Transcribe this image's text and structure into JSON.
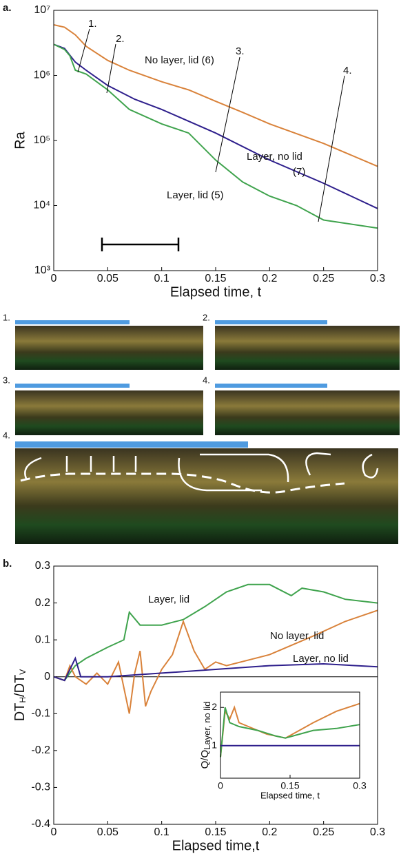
{
  "chart_data": [
    {
      "type": "line",
      "panel_label": "a.",
      "x_label": "Elapsed time, t",
      "y_label": "Ra",
      "log_y": true,
      "xlim": [
        0,
        0.3
      ],
      "ylim": [
        1000,
        10000000
      ],
      "xticks": [
        0,
        0.05,
        0.1,
        0.15,
        0.2,
        0.25,
        0.3
      ],
      "yticks": [
        {
          "value": 1000,
          "label": "10³"
        },
        {
          "value": 10000,
          "label": "10⁴"
        },
        {
          "value": 100000,
          "label": "10⁵"
        },
        {
          "value": 1000000,
          "label": "10⁶"
        },
        {
          "value": 10000000,
          "label": "10⁷"
        }
      ],
      "series": [
        {
          "name": "No layer, lid (6)",
          "color": "#d9823a",
          "x": [
            0,
            0.01,
            0.02,
            0.03,
            0.05,
            0.07,
            0.1,
            0.125,
            0.15,
            0.175,
            0.2,
            0.25,
            0.3
          ],
          "values": [
            6000000,
            5500000,
            4200000,
            2800000,
            1700000,
            1200000,
            800000,
            600000,
            400000,
            270000,
            180000,
            90000,
            40000
          ]
        },
        {
          "name": "Layer, no lid",
          "color": "#2e1f8c",
          "x": [
            0,
            0.01,
            0.02,
            0.03,
            0.05,
            0.075,
            0.1,
            0.15,
            0.2,
            0.25,
            0.3
          ],
          "values": [
            3000000,
            2600000,
            1600000,
            1200000,
            700000,
            430000,
            300000,
            130000,
            50000,
            22000,
            9000
          ]
        },
        {
          "name": "Layer, lid (5)",
          "color": "#3fa34d",
          "x": [
            0,
            0.01,
            0.015,
            0.02,
            0.03,
            0.05,
            0.07,
            0.1,
            0.125,
            0.15,
            0.175,
            0.2,
            0.225,
            0.25,
            0.3
          ],
          "values": [
            3000000,
            2500000,
            2000000,
            1200000,
            1050000,
            600000,
            300000,
            180000,
            130000,
            50000,
            23000,
            14000,
            10000,
            6000,
            4500
          ]
        }
      ],
      "annotations": [
        "(7)",
        "1.",
        "2.",
        "3.",
        "4."
      ]
    },
    {
      "type": "line",
      "panel_label": "b.",
      "x_label": "Elapsed time,t",
      "y_label_parts": [
        "DT",
        "H",
        "/DT",
        "V"
      ],
      "xlim": [
        0,
        0.3
      ],
      "ylim": [
        -0.4,
        0.3
      ],
      "xticks": [
        0,
        0.05,
        0.1,
        0.15,
        0.2,
        0.25,
        0.3
      ],
      "yticks": [
        -0.4,
        -0.3,
        -0.2,
        -0.1,
        0,
        0.1,
        0.2,
        0.3
      ],
      "series": [
        {
          "name": "Layer, lid",
          "color": "#3fa34d",
          "x": [
            0,
            0.01,
            0.02,
            0.03,
            0.05,
            0.065,
            0.07,
            0.08,
            0.1,
            0.12,
            0.14,
            0.16,
            0.18,
            0.2,
            0.22,
            0.23,
            0.25,
            0.27,
            0.3
          ],
          "values": [
            0,
            -0.01,
            0.03,
            0.05,
            0.08,
            0.1,
            0.175,
            0.14,
            0.14,
            0.155,
            0.19,
            0.23,
            0.25,
            0.25,
            0.22,
            0.24,
            0.23,
            0.21,
            0.2
          ]
        },
        {
          "name": "No layer, lid",
          "color": "#d9823a",
          "x": [
            0,
            0.01,
            0.015,
            0.02,
            0.03,
            0.04,
            0.05,
            0.06,
            0.065,
            0.07,
            0.075,
            0.08,
            0.085,
            0.09,
            0.1,
            0.11,
            0.12,
            0.13,
            0.14,
            0.15,
            0.16,
            0.2,
            0.24,
            0.27,
            0.3
          ],
          "values": [
            0,
            -0.01,
            0.03,
            0,
            -0.02,
            0.01,
            -0.02,
            0.04,
            -0.03,
            -0.1,
            0.01,
            0.07,
            -0.08,
            -0.04,
            0.02,
            0.06,
            0.15,
            0.07,
            0.02,
            0.04,
            0.03,
            0.06,
            0.11,
            0.15,
            0.18
          ]
        },
        {
          "name": "Layer, no lid",
          "color": "#2e1f8c",
          "x": [
            0,
            0.01,
            0.02,
            0.025,
            0.05,
            0.1,
            0.15,
            0.2,
            0.25,
            0.3
          ],
          "values": [
            0,
            -0.01,
            0.05,
            0,
            0,
            0.01,
            0.02,
            0.03,
            0.035,
            0.027
          ]
        }
      ]
    },
    {
      "type": "line",
      "x_label": "Elapsed time, t",
      "y_label_parts": [
        "Q/Q",
        "Layer, no lid"
      ],
      "xlim": [
        0,
        0.3
      ],
      "ylim": [
        0.15,
        2.4
      ],
      "xticks": [
        0,
        0.15,
        0.3
      ],
      "yticks": [
        1,
        2
      ],
      "series": [
        {
          "color": "#d9823a",
          "x": [
            0,
            0.01,
            0.02,
            0.03,
            0.04,
            0.06,
            0.1,
            0.14,
            0.17,
            0.2,
            0.25,
            0.3
          ],
          "values": [
            0.7,
            1.9,
            1.7,
            2.0,
            1.6,
            1.5,
            1.3,
            1.2,
            1.4,
            1.6,
            1.9,
            2.1
          ]
        },
        {
          "color": "#3fa34d",
          "x": [
            0,
            0.01,
            0.02,
            0.04,
            0.08,
            0.12,
            0.14,
            0.17,
            0.2,
            0.25,
            0.3
          ],
          "values": [
            0.7,
            2.0,
            1.6,
            1.5,
            1.4,
            1.25,
            1.2,
            1.3,
            1.4,
            1.45,
            1.55
          ]
        },
        {
          "color": "#2e1f8c",
          "x": [
            0,
            0.3
          ],
          "values": [
            1,
            1
          ]
        }
      ]
    }
  ],
  "photos": {
    "labels": [
      "1.",
      "2.",
      "3.",
      "4.",
      "4."
    ]
  }
}
